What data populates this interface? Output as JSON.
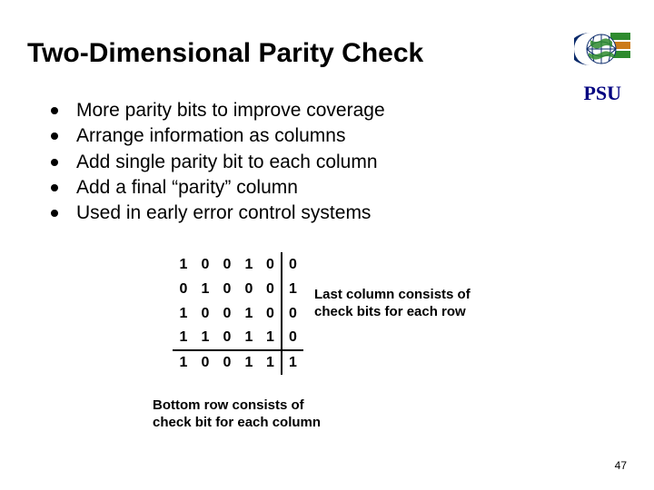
{
  "title": "Two-Dimensional Parity Check",
  "psu_label": "PSU",
  "bullets": [
    "More parity bits to improve coverage",
    "Arrange information as columns",
    "Add single parity bit to each column",
    "Add a final “parity” column",
    "Used in early error control systems"
  ],
  "parity_table": {
    "rows": [
      [
        "1",
        "0",
        "0",
        "1",
        "0",
        "0"
      ],
      [
        "0",
        "1",
        "0",
        "0",
        "0",
        "1"
      ],
      [
        "1",
        "0",
        "0",
        "1",
        "0",
        "0"
      ],
      [
        "1",
        "1",
        "0",
        "1",
        "1",
        "0"
      ],
      [
        "1",
        "0",
        "0",
        "1",
        "1",
        "1"
      ]
    ],
    "last_col_index": 5,
    "last_row_index": 4,
    "cell_fontsize": 16,
    "border_color": "#000000"
  },
  "side_note": "Last column consists of check bits for each row",
  "bottom_note": "Bottom row consists of check bit for each column",
  "page_number": "47",
  "colors": {
    "title": "#000000",
    "psu": "#000080",
    "logo_blue": "#0b2b6b",
    "logo_green": "#2e8b2e",
    "logo_orange": "#cc7a1a",
    "background": "#ffffff"
  },
  "logo": {
    "alt": "PSU globe logo"
  }
}
